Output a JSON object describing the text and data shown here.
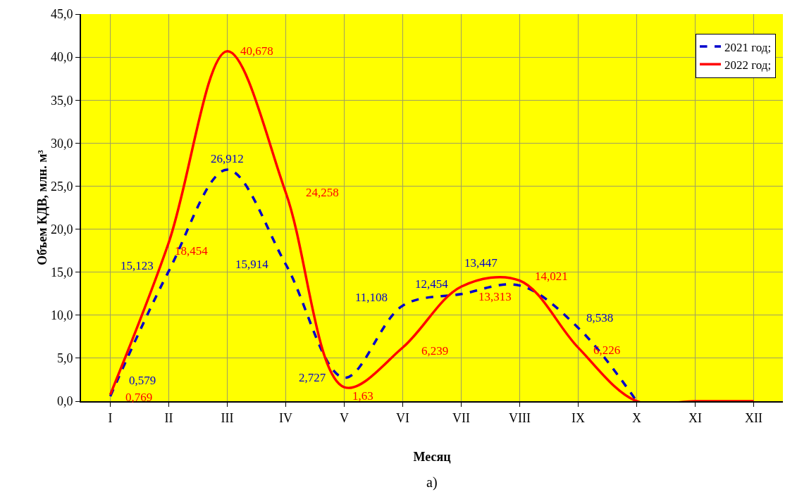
{
  "chart_data": {
    "type": "line",
    "xlabel": "Месяц",
    "ylabel": "Объем КДВ, млн. м³",
    "annotations": [
      "а)"
    ],
    "categories": [
      "I",
      "II",
      "III",
      "IV",
      "V",
      "VI",
      "VII",
      "VIII",
      "IX",
      "X",
      "XI",
      "XII"
    ],
    "series": [
      {
        "name": "2021 год;",
        "color": "#0000cc",
        "line_style": "dashed",
        "values": [
          0.579,
          15.123,
          26.912,
          15.914,
          2.727,
          11.108,
          12.454,
          13.447,
          8.538,
          0,
          null,
          null
        ],
        "value_labels": [
          "0,579",
          "15,123",
          "26,912",
          "15,914",
          "2,727",
          "11,108",
          "12,454",
          "13,447",
          "8,538",
          null,
          null,
          null
        ]
      },
      {
        "name": "2022 год;",
        "color": "#ff0000",
        "line_style": "solid",
        "values": [
          0.769,
          18.454,
          40.678,
          24.258,
          1.63,
          6.239,
          13.313,
          14.021,
          6.226,
          0,
          0,
          0
        ],
        "value_labels": [
          "0,769",
          "18,454",
          "40,678",
          "24,258",
          "1,63",
          "6,239",
          "13,313",
          "14,021",
          "6,226",
          null,
          null,
          null
        ]
      }
    ],
    "ylim": [
      0,
      45
    ],
    "yticks": [
      {
        "value": 0,
        "label": "0,0"
      },
      {
        "value": 5,
        "label": "5,0"
      },
      {
        "value": 10,
        "label": "10,0"
      },
      {
        "value": 15,
        "label": "15,0"
      },
      {
        "value": 20,
        "label": "20,0"
      },
      {
        "value": 25,
        "label": "25,0"
      },
      {
        "value": 30,
        "label": "30,0"
      },
      {
        "value": 35,
        "label": "35,0"
      },
      {
        "value": 40,
        "label": "40,0"
      },
      {
        "value": 45,
        "label": "45,0"
      }
    ],
    "grid": true,
    "legend": "top right",
    "marker": "none"
  }
}
